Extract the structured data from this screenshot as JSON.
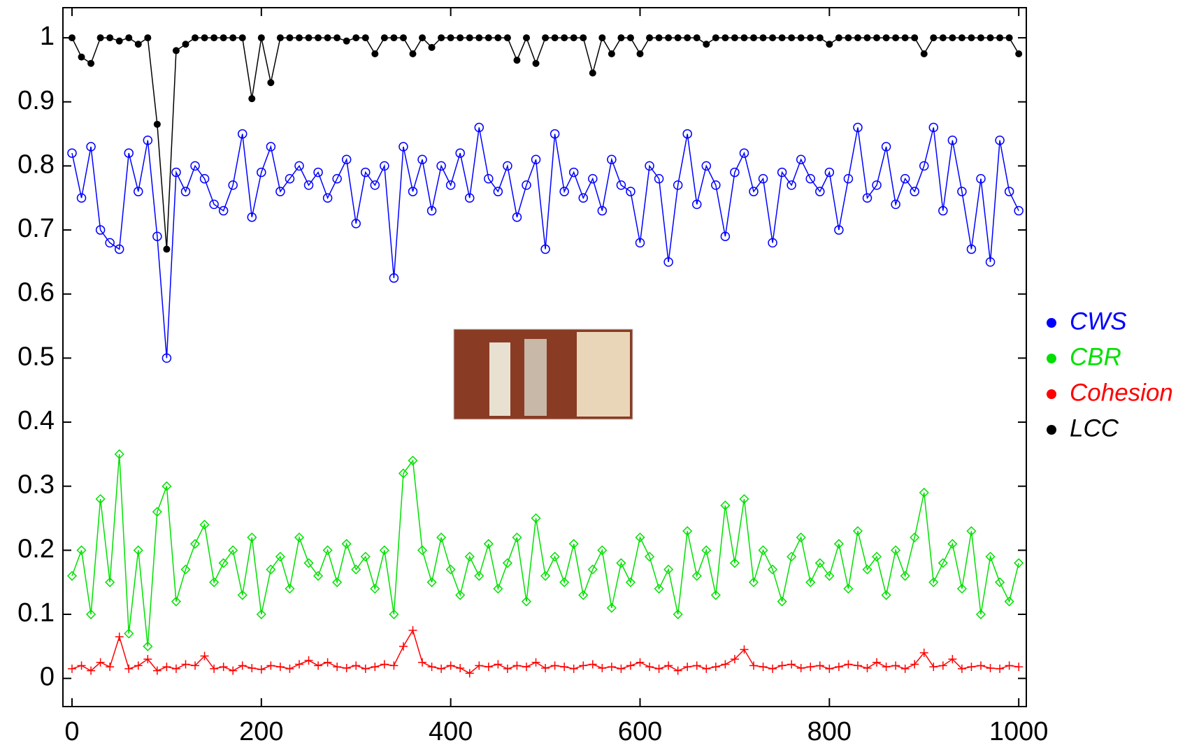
{
  "chart_data": {
    "type": "line",
    "x": [
      0,
      10,
      20,
      30,
      40,
      50,
      60,
      70,
      80,
      90,
      100,
      110,
      120,
      130,
      140,
      150,
      160,
      170,
      180,
      190,
      200,
      210,
      220,
      230,
      240,
      250,
      260,
      270,
      280,
      290,
      300,
      310,
      320,
      330,
      340,
      350,
      360,
      370,
      380,
      390,
      400,
      410,
      420,
      430,
      440,
      450,
      460,
      470,
      480,
      490,
      500,
      510,
      520,
      530,
      540,
      550,
      560,
      570,
      580,
      590,
      600,
      610,
      620,
      630,
      640,
      650,
      660,
      670,
      680,
      690,
      700,
      710,
      720,
      730,
      740,
      750,
      760,
      770,
      780,
      790,
      800,
      810,
      820,
      830,
      840,
      850,
      860,
      870,
      880,
      890,
      900,
      910,
      920,
      930,
      940,
      950,
      960,
      970,
      980,
      990,
      1000
    ],
    "series": [
      {
        "name": "CWS",
        "color": "#0000ff",
        "marker": "circle",
        "values": [
          0.82,
          0.75,
          0.83,
          0.7,
          0.68,
          0.67,
          0.82,
          0.76,
          0.84,
          0.69,
          0.5,
          0.79,
          0.76,
          0.8,
          0.78,
          0.74,
          0.73,
          0.77,
          0.85,
          0.72,
          0.79,
          0.83,
          0.76,
          0.78,
          0.8,
          0.77,
          0.79,
          0.75,
          0.78,
          0.81,
          0.71,
          0.79,
          0.77,
          0.8,
          0.625,
          0.83,
          0.76,
          0.81,
          0.73,
          0.8,
          0.77,
          0.82,
          0.75,
          0.86,
          0.78,
          0.76,
          0.8,
          0.72,
          0.77,
          0.81,
          0.67,
          0.85,
          0.76,
          0.79,
          0.75,
          0.78,
          0.73,
          0.81,
          0.77,
          0.76,
          0.68,
          0.8,
          0.78,
          0.65,
          0.77,
          0.85,
          0.74,
          0.8,
          0.77,
          0.69,
          0.79,
          0.82,
          0.76,
          0.78,
          0.68,
          0.79,
          0.77,
          0.81,
          0.78,
          0.76,
          0.79,
          0.7,
          0.78,
          0.86,
          0.75,
          0.77,
          0.83,
          0.74,
          0.78,
          0.76,
          0.8,
          0.86,
          0.73,
          0.84,
          0.76,
          0.67,
          0.78,
          0.65,
          0.84,
          0.76,
          0.73
        ]
      },
      {
        "name": "CBR",
        "color": "#00e000",
        "marker": "diamond",
        "values": [
          0.16,
          0.2,
          0.1,
          0.28,
          0.15,
          0.35,
          0.07,
          0.2,
          0.05,
          0.26,
          0.3,
          0.12,
          0.17,
          0.21,
          0.24,
          0.15,
          0.18,
          0.2,
          0.13,
          0.22,
          0.1,
          0.17,
          0.19,
          0.14,
          0.22,
          0.18,
          0.16,
          0.2,
          0.15,
          0.21,
          0.17,
          0.19,
          0.14,
          0.2,
          0.1,
          0.32,
          0.34,
          0.2,
          0.15,
          0.22,
          0.17,
          0.13,
          0.19,
          0.16,
          0.21,
          0.14,
          0.18,
          0.22,
          0.12,
          0.25,
          0.16,
          0.19,
          0.15,
          0.21,
          0.13,
          0.17,
          0.2,
          0.11,
          0.18,
          0.15,
          0.22,
          0.19,
          0.14,
          0.17,
          0.1,
          0.23,
          0.16,
          0.2,
          0.13,
          0.27,
          0.18,
          0.28,
          0.15,
          0.2,
          0.17,
          0.12,
          0.19,
          0.22,
          0.15,
          0.18,
          0.16,
          0.21,
          0.14,
          0.23,
          0.17,
          0.19,
          0.13,
          0.2,
          0.16,
          0.22,
          0.29,
          0.15,
          0.18,
          0.21,
          0.14,
          0.23,
          0.1,
          0.19,
          0.15,
          0.12,
          0.18
        ]
      },
      {
        "name": "Cohesion",
        "color": "#ff0000",
        "marker": "plus",
        "values": [
          0.015,
          0.02,
          0.012,
          0.025,
          0.018,
          0.065,
          0.015,
          0.02,
          0.03,
          0.012,
          0.018,
          0.015,
          0.022,
          0.02,
          0.035,
          0.015,
          0.018,
          0.012,
          0.02,
          0.016,
          0.014,
          0.02,
          0.018,
          0.015,
          0.022,
          0.028,
          0.02,
          0.025,
          0.018,
          0.016,
          0.02,
          0.015,
          0.018,
          0.022,
          0.02,
          0.05,
          0.075,
          0.025,
          0.018,
          0.015,
          0.02,
          0.016,
          0.008,
          0.02,
          0.018,
          0.022,
          0.015,
          0.02,
          0.018,
          0.025,
          0.016,
          0.02,
          0.018,
          0.015,
          0.02,
          0.022,
          0.016,
          0.018,
          0.015,
          0.02,
          0.025,
          0.018,
          0.015,
          0.02,
          0.012,
          0.018,
          0.02,
          0.015,
          0.018,
          0.022,
          0.03,
          0.045,
          0.02,
          0.018,
          0.015,
          0.02,
          0.022,
          0.016,
          0.018,
          0.02,
          0.015,
          0.018,
          0.022,
          0.02,
          0.016,
          0.025,
          0.018,
          0.02,
          0.015,
          0.022,
          0.04,
          0.018,
          0.02,
          0.03,
          0.015,
          0.018,
          0.02,
          0.016,
          0.015,
          0.02,
          0.018
        ]
      },
      {
        "name": "LCC",
        "color": "#000000",
        "marker": "dot",
        "values": [
          1,
          0.97,
          0.96,
          1,
          1,
          0.995,
          1,
          0.99,
          1,
          0.865,
          0.67,
          0.98,
          0.99,
          1,
          1,
          1,
          1,
          1,
          1,
          0.905,
          1,
          0.93,
          1,
          1,
          1,
          1,
          1,
          1,
          1,
          0.995,
          1,
          1,
          0.975,
          1,
          1,
          1,
          0.975,
          1,
          0.985,
          1,
          1,
          1,
          1,
          1,
          1,
          1,
          1,
          0.965,
          1,
          0.96,
          1,
          1,
          1,
          1,
          1,
          0.945,
          1,
          0.975,
          1,
          1,
          0.975,
          1,
          1,
          1,
          1,
          1,
          1,
          0.99,
          1,
          1,
          1,
          1,
          1,
          1,
          1,
          1,
          1,
          1,
          1,
          1,
          0.99,
          1,
          1,
          1,
          1,
          1,
          1,
          1,
          1,
          1,
          0.975,
          1,
          1,
          1,
          1,
          1,
          1,
          1,
          1,
          1,
          0.975
        ]
      }
    ],
    "xlim": [
      -9.6,
      1008
    ],
    "ylim": [
      -0.044,
      1.047
    ],
    "xticks": [
      0,
      200,
      400,
      600,
      800,
      1000
    ],
    "yticks": [
      0,
      0.1,
      0.2,
      0.3,
      0.4,
      0.5,
      0.6,
      0.7,
      0.8,
      0.9,
      1
    ],
    "legend": "right"
  }
}
